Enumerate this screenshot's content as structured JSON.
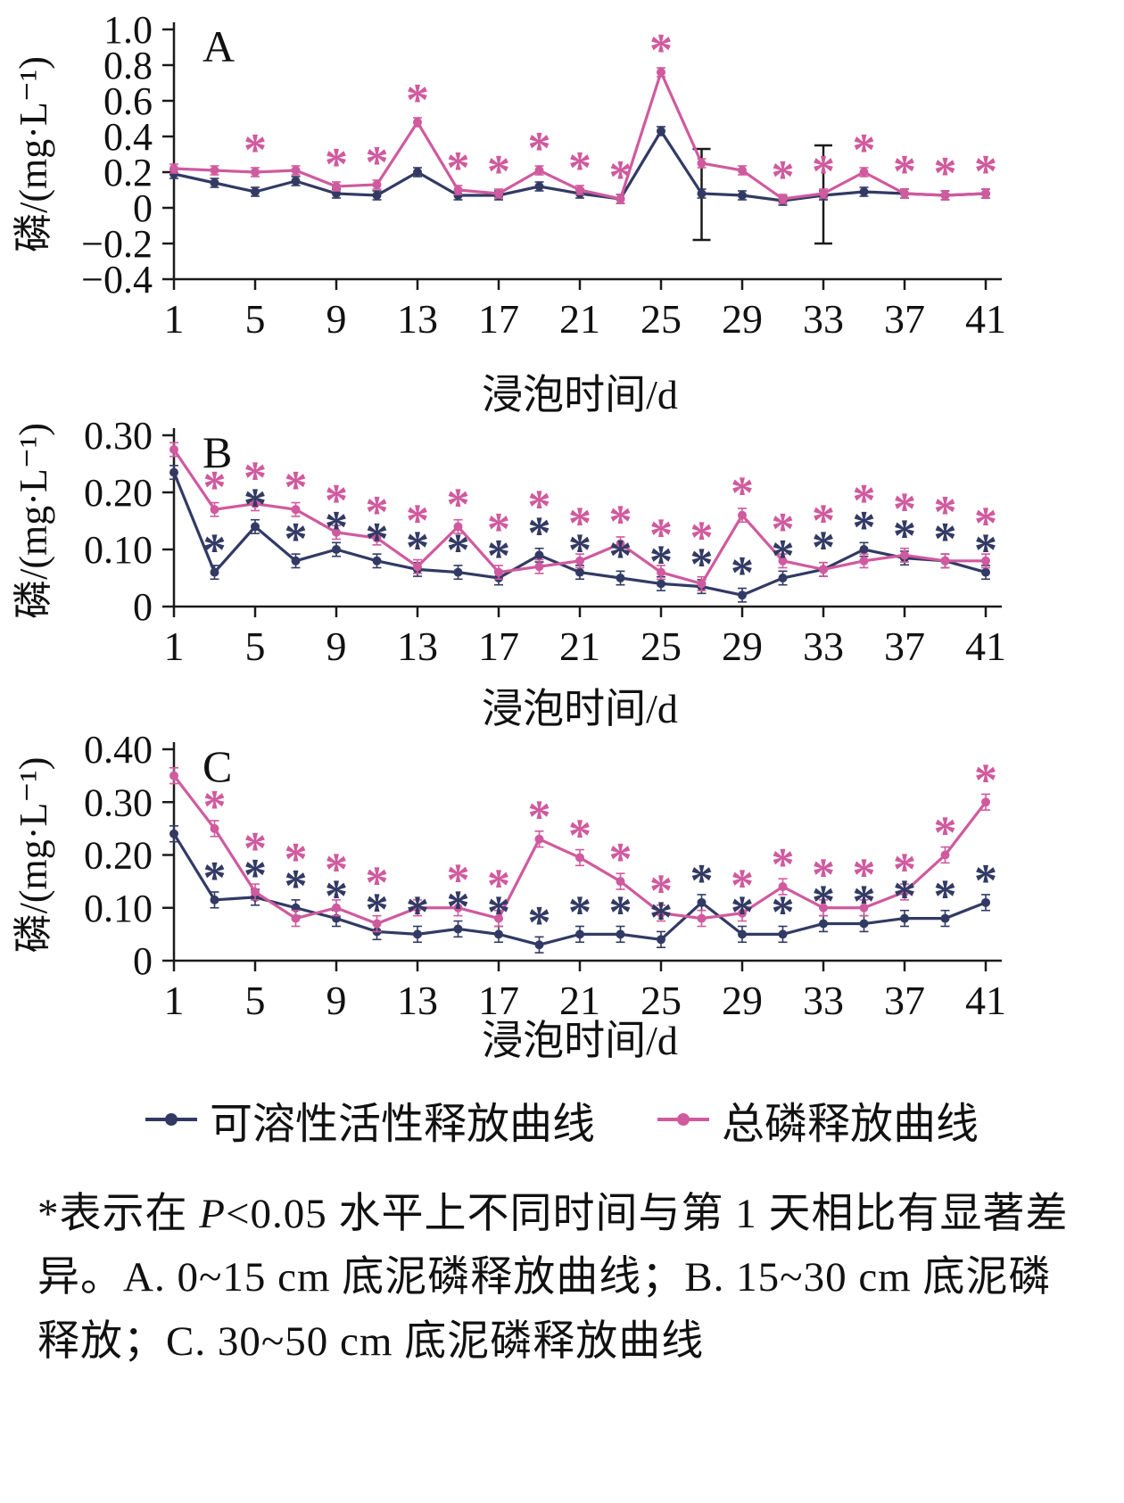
{
  "colors": {
    "srp": "#323a64",
    "tp": "#d05a9e",
    "axis": "#1a1a1a"
  },
  "legend": {
    "srp": "可溶性活性释放曲线",
    "tp": "总磷释放曲线"
  },
  "caption": {
    "prefix": "*表示在 ",
    "p_symbol": "P",
    "rest": "<0.05 水平上不同时间与第 1 天相比有显著差异。A. 0~15 cm 底泥磷释放曲线；B. 15~30 cm 底泥磷释放；C. 30~50 cm 底泥磷释放曲线"
  },
  "chart_data": [
    {
      "type": "line",
      "panel": "A",
      "xlabel": "浸泡时间/d",
      "ylabel": "磷/(mg·L⁻¹)",
      "x": [
        1,
        3,
        5,
        7,
        9,
        11,
        13,
        15,
        17,
        19,
        21,
        23,
        25,
        27,
        29,
        31,
        33,
        35,
        37,
        39,
        41
      ],
      "x_ticks": [
        1,
        5,
        9,
        13,
        17,
        21,
        25,
        29,
        33,
        37,
        41
      ],
      "ylim": [
        -0.4,
        1.0
      ],
      "y_ticks": [
        {
          "v": 1.0,
          "label": "1.0"
        },
        {
          "v": 0.8,
          "label": "0.8"
        },
        {
          "v": 0.6,
          "label": "0.6"
        },
        {
          "v": 0.4,
          "label": "0.4"
        },
        {
          "v": 0.2,
          "label": "0.2"
        },
        {
          "v": 0,
          "label": "0"
        },
        {
          "v": -0.2,
          "label": "−0.2"
        },
        {
          "v": -0.4,
          "label": "−0.4"
        }
      ],
      "point_error": 0.025,
      "series": [
        {
          "name": "可溶性活性释放曲线",
          "color_key": "srp",
          "values": [
            0.19,
            0.14,
            0.09,
            0.15,
            0.08,
            0.07,
            0.2,
            0.07,
            0.07,
            0.12,
            0.08,
            0.05,
            0.43,
            0.08,
            0.07,
            0.04,
            0.07,
            0.09,
            0.08,
            0.07,
            0.08
          ],
          "sig_days": []
        },
        {
          "name": "总磷释放曲线",
          "color_key": "tp",
          "values": [
            0.22,
            0.21,
            0.2,
            0.21,
            0.12,
            0.13,
            0.48,
            0.1,
            0.08,
            0.21,
            0.1,
            0.05,
            0.76,
            0.25,
            0.21,
            0.05,
            0.08,
            0.2,
            0.08,
            0.07,
            0.08
          ],
          "sig_days": [
            5,
            9,
            11,
            13,
            15,
            17,
            19,
            21,
            23,
            25,
            31,
            33,
            35,
            37,
            39,
            41
          ]
        }
      ],
      "outlier_error_bars": [
        {
          "day": 27,
          "low": -0.18,
          "high": 0.33
        },
        {
          "day": 33,
          "low": -0.2,
          "high": 0.35
        }
      ]
    },
    {
      "type": "line",
      "panel": "B",
      "xlabel": "浸泡时间/d",
      "ylabel": "磷/(mg·L⁻¹)",
      "x": [
        1,
        3,
        5,
        7,
        9,
        11,
        13,
        15,
        17,
        19,
        21,
        23,
        25,
        27,
        29,
        31,
        33,
        35,
        37,
        39,
        41
      ],
      "x_ticks": [
        1,
        5,
        9,
        13,
        17,
        21,
        25,
        29,
        33,
        37,
        41
      ],
      "ylim": [
        0,
        0.3
      ],
      "y_ticks": [
        {
          "v": 0.3,
          "label": "0.30"
        },
        {
          "v": 0.2,
          "label": "0.20"
        },
        {
          "v": 0.1,
          "label": "0.10"
        },
        {
          "v": 0,
          "label": "0"
        }
      ],
      "point_error": 0.012,
      "series": [
        {
          "name": "可溶性活性释放曲线",
          "color_key": "srp",
          "values": [
            0.235,
            0.06,
            0.14,
            0.08,
            0.1,
            0.08,
            0.065,
            0.06,
            0.05,
            0.09,
            0.06,
            0.05,
            0.04,
            0.035,
            0.02,
            0.05,
            0.065,
            0.1,
            0.085,
            0.08,
            0.06
          ],
          "sig_days": [
            3,
            5,
            7,
            9,
            11,
            13,
            15,
            17,
            19,
            21,
            23,
            25,
            27,
            29,
            31,
            33,
            35,
            37,
            39,
            41
          ]
        },
        {
          "name": "总磷释放曲线",
          "color_key": "tp",
          "values": [
            0.275,
            0.17,
            0.18,
            0.17,
            0.13,
            0.12,
            0.07,
            0.14,
            0.06,
            0.07,
            0.08,
            0.11,
            0.06,
            0.04,
            0.16,
            0.08,
            0.065,
            0.08,
            0.09,
            0.08,
            0.08
          ],
          "sig_days": [
            3,
            5,
            7,
            9,
            11,
            13,
            15,
            17,
            19,
            21,
            23,
            25,
            27,
            29,
            31,
            33,
            35,
            37,
            39,
            41
          ]
        }
      ],
      "outlier_error_bars": []
    },
    {
      "type": "line",
      "panel": "C",
      "xlabel": "浸泡时间/d",
      "ylabel": "磷/(mg·L⁻¹)",
      "x": [
        1,
        3,
        5,
        7,
        9,
        11,
        13,
        15,
        17,
        19,
        21,
        23,
        25,
        27,
        29,
        31,
        33,
        35,
        37,
        39,
        41
      ],
      "x_ticks": [
        1,
        5,
        9,
        13,
        17,
        21,
        25,
        29,
        33,
        37,
        41
      ],
      "ylim": [
        0,
        0.4
      ],
      "y_ticks": [
        {
          "v": 0.4,
          "label": "0.40"
        },
        {
          "v": 0.3,
          "label": "0.30"
        },
        {
          "v": 0.2,
          "label": "0.20"
        },
        {
          "v": 0.1,
          "label": "0.10"
        },
        {
          "v": 0,
          "label": "0"
        }
      ],
      "point_error": 0.015,
      "series": [
        {
          "name": "可溶性活性释放曲线",
          "color_key": "srp",
          "values": [
            0.24,
            0.115,
            0.12,
            0.1,
            0.08,
            0.055,
            0.05,
            0.06,
            0.05,
            0.03,
            0.05,
            0.05,
            0.04,
            0.11,
            0.05,
            0.05,
            0.07,
            0.07,
            0.08,
            0.08,
            0.11
          ],
          "sig_days": [
            3,
            5,
            7,
            9,
            11,
            13,
            15,
            17,
            19,
            21,
            23,
            25,
            27,
            29,
            31,
            33,
            35,
            37,
            39,
            41
          ]
        },
        {
          "name": "总磷释放曲线",
          "color_key": "tp",
          "values": [
            0.35,
            0.25,
            0.13,
            0.08,
            0.1,
            0.07,
            0.1,
            0.1,
            0.08,
            0.23,
            0.195,
            0.15,
            0.09,
            0.08,
            0.09,
            0.14,
            0.1,
            0.1,
            0.13,
            0.2,
            0.3
          ],
          "sig_days": [
            3,
            5,
            7,
            9,
            11,
            15,
            17,
            19,
            21,
            23,
            25,
            29,
            31,
            33,
            35,
            37,
            39,
            41
          ]
        }
      ],
      "outlier_error_bars": []
    }
  ]
}
